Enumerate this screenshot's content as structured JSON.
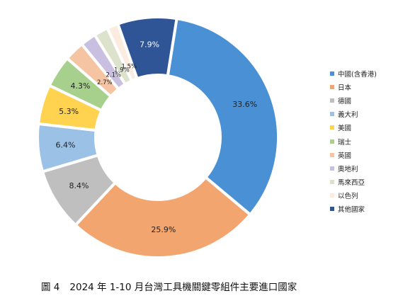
{
  "chart_data": {
    "type": "pie",
    "donut": true,
    "categories": [
      "中國(含香港)",
      "日本",
      "德國",
      "義大利",
      "美國",
      "瑞士",
      "英國",
      "奧地利",
      "馬來西亞",
      "以色列",
      "其他國家"
    ],
    "values": [
      33.6,
      25.9,
      8.4,
      6.4,
      5.3,
      4.3,
      2.7,
      2.1,
      1.9,
      1.5,
      7.9
    ],
    "labels": [
      "33.6%",
      "25.9%",
      "8.4%",
      "6.4%",
      "5.3%",
      "4.3%",
      "2.7%",
      "2.1%",
      "1.9%",
      "1.5%",
      "7.9%"
    ],
    "colors": [
      "#4a90d4",
      "#f2a56f",
      "#bfbfbf",
      "#9bc2e6",
      "#ffd34f",
      "#a7d08c",
      "#f5c4a3",
      "#c9bfe1",
      "#dde2cc",
      "#fcece0",
      "#2f5597"
    ],
    "legend_position": "right",
    "title": ""
  },
  "caption": {
    "figure_number": "圖 4",
    "text": "2024 年 1-10 月台灣工具機關鍵零組件主要進口國家"
  }
}
